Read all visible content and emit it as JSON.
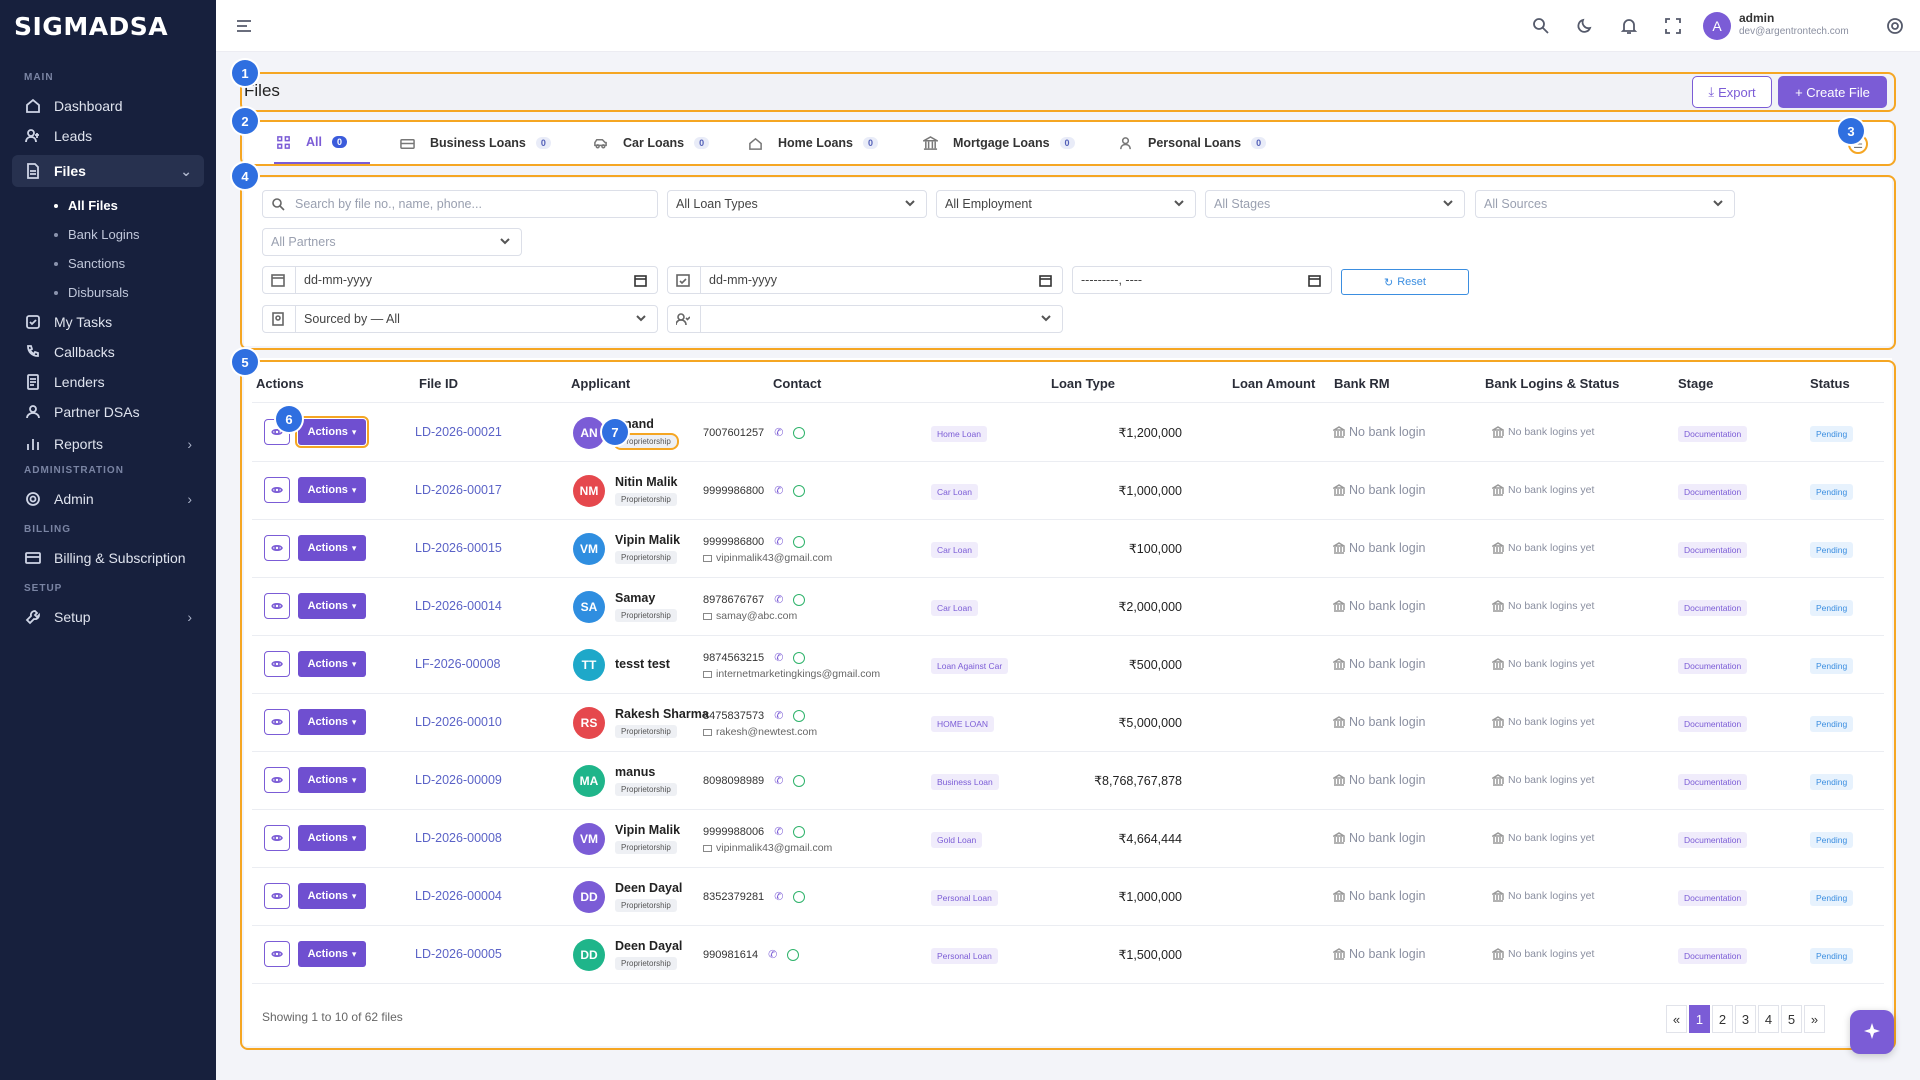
{
  "app": {
    "logo": "SIGMADSA"
  },
  "sidebar": {
    "sections": {
      "main": "MAIN",
      "administration": "ADMINISTRATION",
      "billing": "BILLING",
      "setup": "SETUP"
    },
    "items": {
      "dashboard": "Dashboard",
      "leads": "Leads",
      "files": "Files",
      "all_files": "All Files",
      "bank_logins": "Bank Logins",
      "sanctions": "Sanctions",
      "disbursals": "Disbursals",
      "my_tasks": "My Tasks",
      "callbacks": "Callbacks",
      "lenders": "Lenders",
      "partner_dsas": "Partner DSAs",
      "reports": "Reports",
      "admin": "Admin",
      "billing": "Billing & Subscription",
      "setup": "Setup"
    }
  },
  "topbar": {
    "user_initial": "A",
    "user_name": "admin",
    "user_email": "dev@argentrontech.com"
  },
  "annotations": [
    "1",
    "2",
    "3",
    "4",
    "5",
    "6",
    "7"
  ],
  "page": {
    "title": "Files",
    "export_label": "Export",
    "create_label": "+ Create File"
  },
  "tabs": [
    {
      "label": "All",
      "count": "0",
      "icon": "grid-icon"
    },
    {
      "label": "Business Loans",
      "count": "0",
      "icon": "briefcase-icon"
    },
    {
      "label": "Car Loans",
      "count": "0",
      "icon": "car-icon"
    },
    {
      "label": "Home Loans",
      "count": "0",
      "icon": "home-icon"
    },
    {
      "label": "Mortgage Loans",
      "count": "0",
      "icon": "bank-icon"
    },
    {
      "label": "Personal Loans",
      "count": "0",
      "icon": "person-icon"
    }
  ],
  "filters": {
    "search_placeholder": "Search by file no., name, phone...",
    "loan_types": "All Loan Types",
    "employment": "All Employment",
    "stages": "All Stages",
    "sources": "All Sources",
    "partners": "All Partners",
    "date_from": "dd-mm-yyyy",
    "date_to": "dd-mm-yyyy",
    "month": "---------, ----",
    "reset": "Reset",
    "sourced_by": "Sourced by — All"
  },
  "table": {
    "headers": {
      "actions": "Actions",
      "file_id": "File ID",
      "applicant": "Applicant",
      "contact": "Contact",
      "loan_type": "Loan Type",
      "loan_amount": "Loan Amount",
      "bank_rm": "Bank RM",
      "bank_logins": "Bank Logins & Status",
      "stage": "Stage",
      "status": "Status"
    },
    "action_label": "Actions",
    "no_bank_login": "No bank login",
    "no_bank_logins_yet": "No bank logins yet",
    "rows": [
      {
        "file_id": "LD-2026-00021",
        "initials": "AN",
        "name": "Anand",
        "tag": "Proprietorship",
        "phone": "7007601257",
        "email": "",
        "loan_type": "Home Loan",
        "amount": "₹1,200,000",
        "stage": "Documentation",
        "status": "Pending",
        "color": "#7b5cd6"
      },
      {
        "file_id": "LD-2026-00017",
        "initials": "NM",
        "name": "Nitin Malik",
        "tag": "Proprietorship",
        "phone": "9999986800",
        "email": "",
        "loan_type": "Car Loan",
        "amount": "₹1,000,000",
        "stage": "Documentation",
        "status": "Pending",
        "color": "#e5484d"
      },
      {
        "file_id": "LD-2026-00015",
        "initials": "VM",
        "name": "Vipin Malik",
        "tag": "Proprietorship",
        "phone": "9999986800",
        "email": "vipinmalik43@gmail.com",
        "loan_type": "Car Loan",
        "amount": "₹100,000",
        "stage": "Documentation",
        "status": "Pending",
        "color": "#2f8ee0"
      },
      {
        "file_id": "LD-2026-00014",
        "initials": "SA",
        "name": "Samay",
        "tag": "Proprietorship",
        "phone": "8978676767",
        "email": "samay@abc.com",
        "loan_type": "Car Loan",
        "amount": "₹2,000,000",
        "stage": "Documentation",
        "status": "Pending",
        "color": "#2f8ee0"
      },
      {
        "file_id": "LF-2026-00008",
        "initials": "TT",
        "name": "tesst test",
        "tag": "",
        "phone": "9874563215",
        "email": "internetmarketingkings@gmail.com",
        "loan_type": "Loan Against Car",
        "amount": "₹500,000",
        "stage": "Documentation",
        "status": "Pending",
        "color": "#1ea8c9"
      },
      {
        "file_id": "LD-2026-00010",
        "initials": "RS",
        "name": "Rakesh Sharma",
        "tag": "Proprietorship",
        "phone": "8475837573",
        "email": "rakesh@newtest.com",
        "loan_type": "HOME LOAN",
        "amount": "₹5,000,000",
        "stage": "Documentation",
        "status": "Pending",
        "color": "#e5484d"
      },
      {
        "file_id": "LD-2026-00009",
        "initials": "MA",
        "name": "manus",
        "tag": "Proprietorship",
        "phone": "8098098989",
        "email": "",
        "loan_type": "Business Loan",
        "amount": "₹8,768,767,878",
        "stage": "Documentation",
        "status": "Pending",
        "color": "#1fb58a"
      },
      {
        "file_id": "LD-2026-00008",
        "initials": "VM",
        "name": "Vipin Malik",
        "tag": "Proprietorship",
        "phone": "9999988006",
        "email": "vipinmalik43@gmail.com",
        "loan_type": "Gold Loan",
        "amount": "₹4,664,444",
        "stage": "Documentation",
        "status": "Pending",
        "color": "#7b5cd6"
      },
      {
        "file_id": "LD-2026-00004",
        "initials": "DD",
        "name": "Deen Dayal",
        "tag": "Proprietorship",
        "phone": "8352379281",
        "email": "",
        "loan_type": "Personal Loan",
        "amount": "₹1,000,000",
        "stage": "Documentation",
        "status": "Pending",
        "color": "#7b5cd6"
      },
      {
        "file_id": "LD-2026-00005",
        "initials": "DD",
        "name": "Deen Dayal",
        "tag": "Proprietorship",
        "phone": "990981614",
        "email": "",
        "loan_type": "Personal Loan",
        "amount": "₹1,500,000",
        "stage": "Documentation",
        "status": "Pending",
        "color": "#1fb58a"
      }
    ]
  },
  "pagination": {
    "info": "Showing 1 to 10 of 62 files",
    "pages": [
      "«",
      "1",
      "2",
      "3",
      "4",
      "5",
      "»"
    ]
  }
}
